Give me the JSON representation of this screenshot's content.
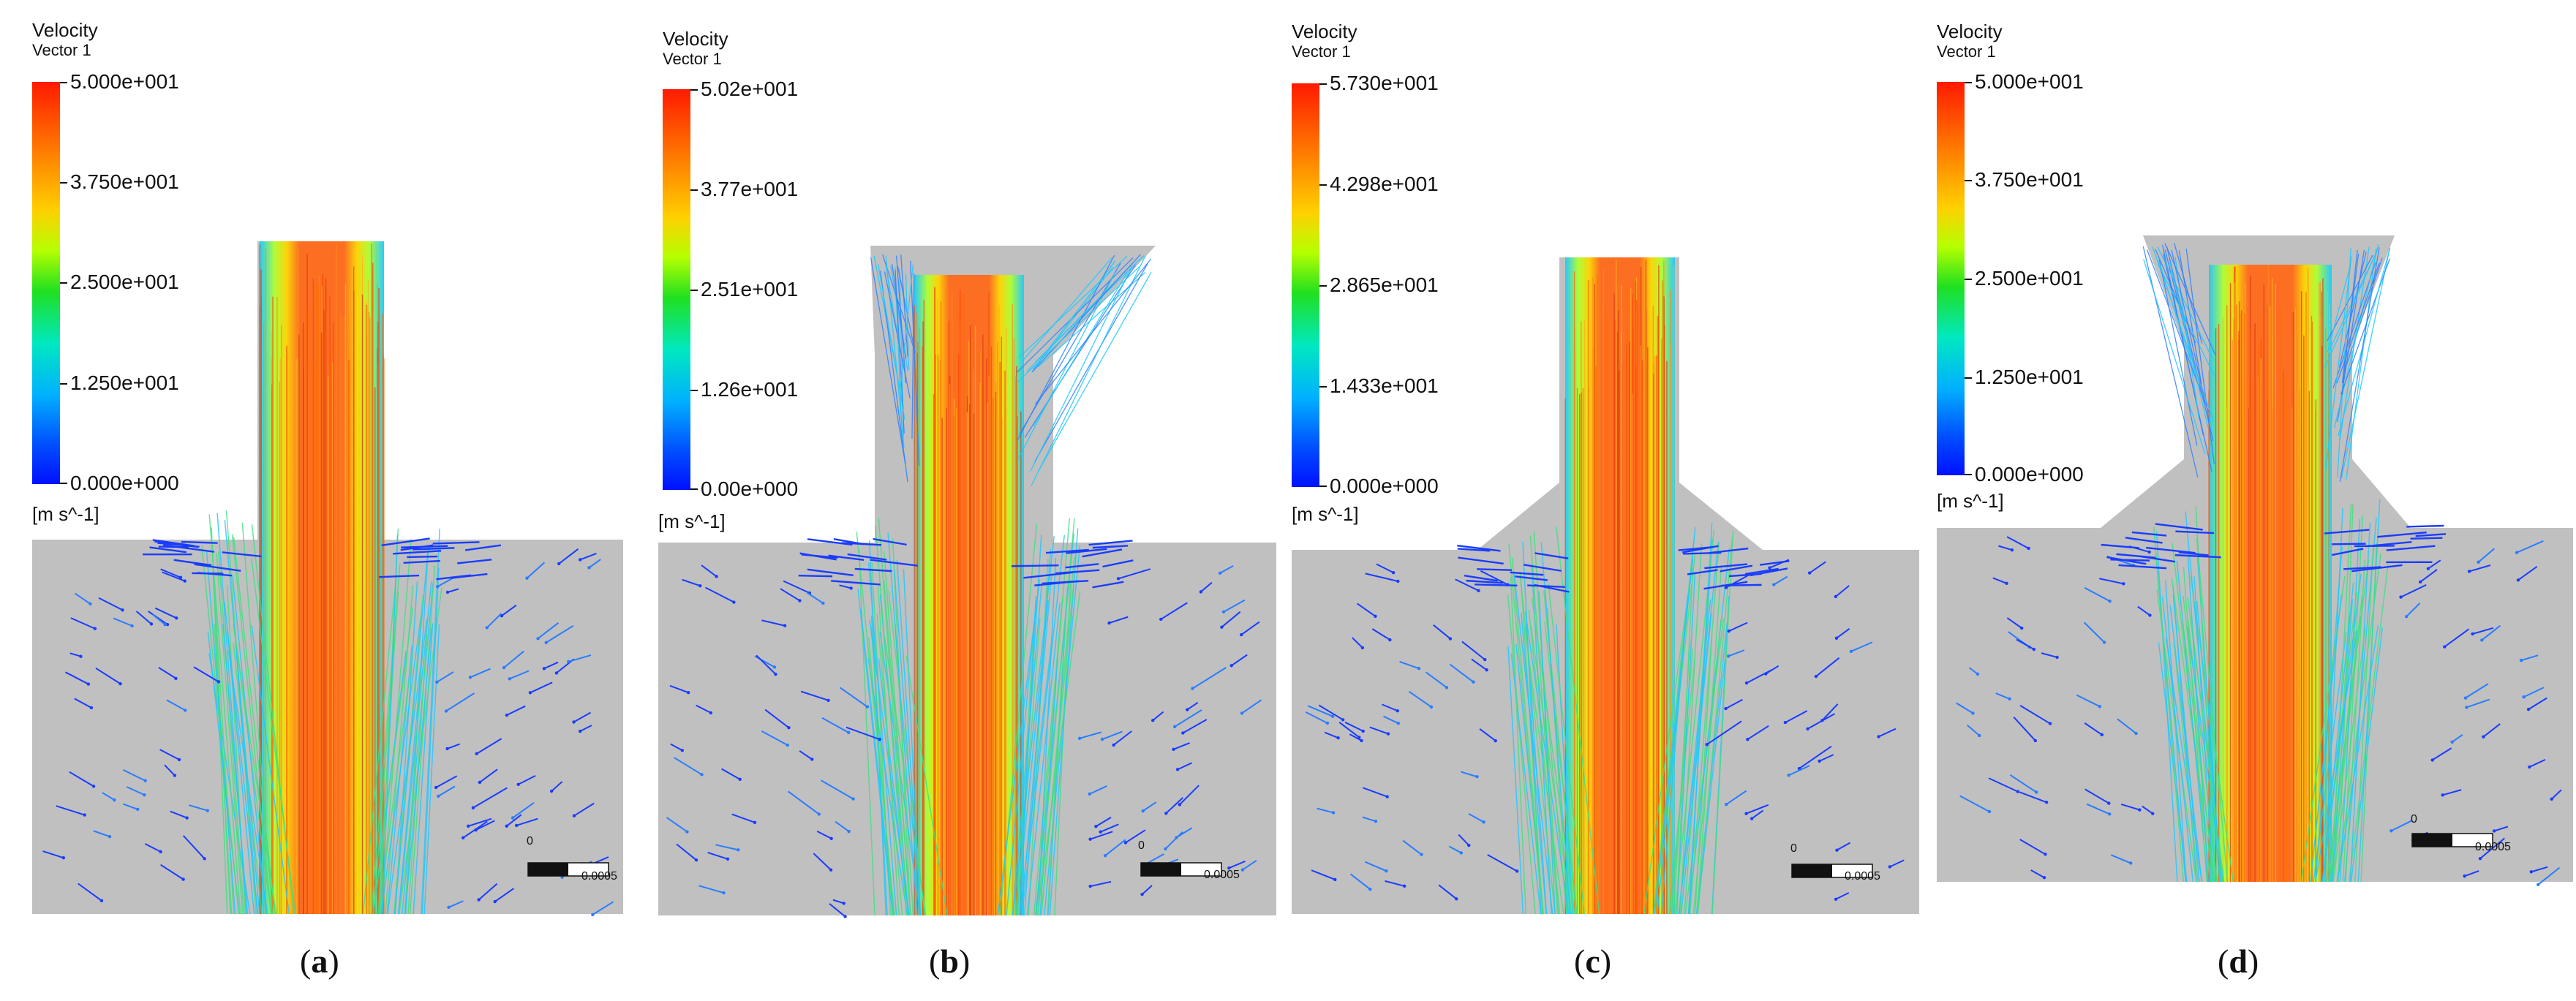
{
  "panels": [
    {
      "key": "a",
      "legend_title": "Velocity",
      "legend_sub": "Vector 1",
      "ticks": [
        "5.000e+001",
        "3.750e+001",
        "2.500e+001",
        "1.250e+001",
        "0.000e+000"
      ],
      "units": "[m s^-1]",
      "scale_zero": "0",
      "scale_value": "0.0005",
      "caption_letter": "a",
      "nozzle": "straight"
    },
    {
      "key": "b",
      "legend_title": "Velocity",
      "legend_sub": "Vector 1",
      "ticks": [
        "5.02e+001",
        "3.77e+001",
        "2.51e+001",
        "1.26e+001",
        "0.00e+000"
      ],
      "units": "[m s^-1]",
      "scale_zero": "0",
      "scale_value": "0.0005",
      "caption_letter": "b",
      "nozzle": "funnel"
    },
    {
      "key": "c",
      "legend_title": "Velocity",
      "legend_sub": "Vector 1",
      "ticks": [
        "5.730e+001",
        "4.298e+001",
        "2.865e+001",
        "1.433e+001",
        "0.000e+000"
      ],
      "units": "[m s^-1]",
      "scale_zero": "0",
      "scale_value": "0.0005",
      "caption_letter": "c",
      "nozzle": "straight-chamfer"
    },
    {
      "key": "d",
      "legend_title": "Velocity",
      "legend_sub": "Vector 1",
      "ticks": [
        "5.000e+001",
        "3.750e+001",
        "2.500e+001",
        "1.250e+001",
        "0.000e+000"
      ],
      "units": "[m s^-1]",
      "scale_zero": "0",
      "scale_value": "0.0005",
      "caption_letter": "d",
      "nozzle": "funnel-chamfer"
    }
  ],
  "colors": {
    "domain": "#c0c0c0",
    "jet_core": "#ff6a1a",
    "jet_edge": "#ffd400",
    "vector_slow": "#1a3cff",
    "vector_mid": "#1ec8ff"
  }
}
